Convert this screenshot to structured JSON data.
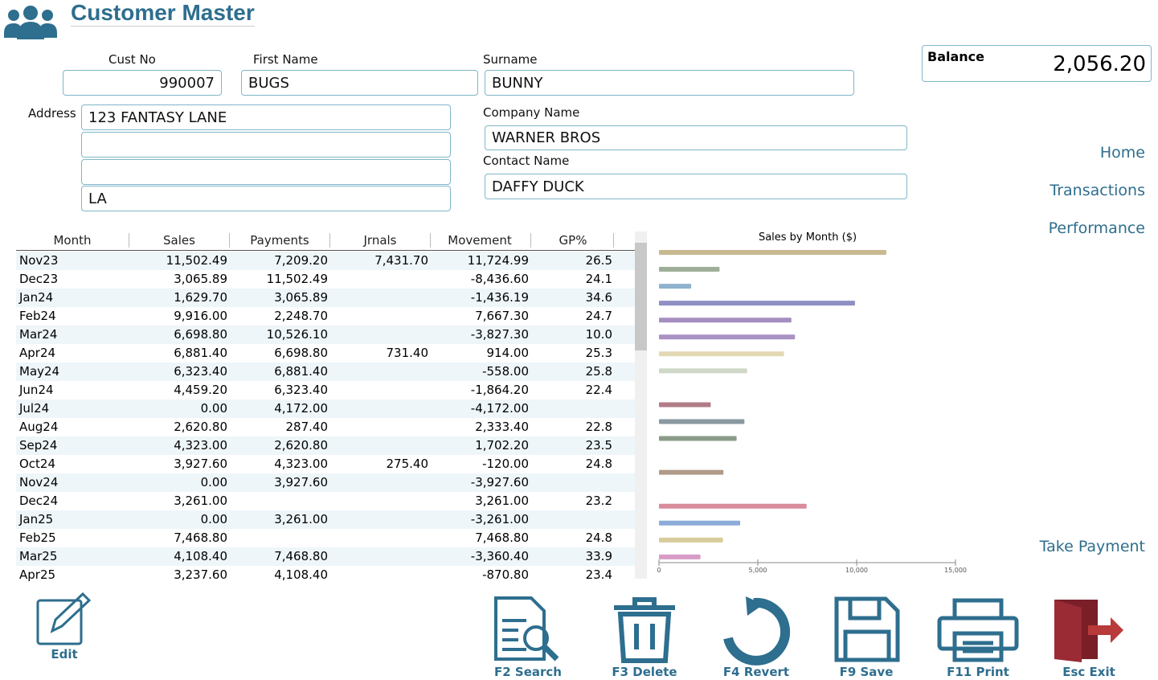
{
  "header": {
    "title": "Customer Master"
  },
  "form": {
    "cust_no": {
      "label": "Cust No",
      "value": "990007"
    },
    "first_name": {
      "label": "First Name",
      "value": "BUGS"
    },
    "surname": {
      "label": "Surname",
      "value": "BUNNY"
    },
    "address": {
      "label": "Address",
      "lines": [
        "123 FANTASY LANE",
        null,
        null,
        "LA"
      ]
    },
    "company_name": {
      "label": "Company Name",
      "value": "WARNER BROS"
    },
    "contact_name": {
      "label": "Contact Name",
      "value": "DAFFY DUCK"
    },
    "balance": {
      "label": "Balance",
      "value": "2,056.20"
    }
  },
  "nav": [
    "Home",
    "Transactions",
    "Performance"
  ],
  "take_payment": "Take Payment",
  "table": {
    "columns": [
      "Month",
      "Sales",
      "Payments",
      "Jrnals",
      "Movement",
      "GP%"
    ],
    "rows": [
      [
        "Nov23",
        "11,502.49",
        "7,209.20",
        "7,431.70",
        "11,724.99",
        "26.5"
      ],
      [
        "Dec23",
        "3,065.89",
        "11,502.49",
        null,
        "-8,436.60",
        "24.1"
      ],
      [
        "Jan24",
        "1,629.70",
        "3,065.89",
        null,
        "-1,436.19",
        "34.6"
      ],
      [
        "Feb24",
        "9,916.00",
        "2,248.70",
        null,
        "7,667.30",
        "24.7"
      ],
      [
        "Mar24",
        "6,698.80",
        "10,526.10",
        null,
        "-3,827.30",
        "10.0"
      ],
      [
        "Apr24",
        "6,881.40",
        "6,698.80",
        "731.40",
        "914.00",
        "25.3"
      ],
      [
        "May24",
        "6,323.40",
        "6,881.40",
        null,
        "-558.00",
        "25.8"
      ],
      [
        "Jun24",
        "4,459.20",
        "6,323.40",
        null,
        "-1,864.20",
        "22.4"
      ],
      [
        "Jul24",
        "0.00",
        "4,172.00",
        null,
        "-4,172.00",
        null
      ],
      [
        "Aug24",
        "2,620.80",
        "287.40",
        null,
        "2,333.40",
        "22.8"
      ],
      [
        "Sep24",
        "4,323.00",
        "2,620.80",
        null,
        "1,702.20",
        "23.5"
      ],
      [
        "Oct24",
        "3,927.60",
        "4,323.00",
        "275.40",
        "-120.00",
        "24.8"
      ],
      [
        "Nov24",
        "0.00",
        "3,927.60",
        null,
        "-3,927.60",
        null
      ],
      [
        "Dec24",
        "3,261.00",
        null,
        null,
        "3,261.00",
        "23.2"
      ],
      [
        "Jan25",
        "0.00",
        "3,261.00",
        null,
        "-3,261.00",
        null
      ],
      [
        "Feb25",
        "7,468.80",
        null,
        null,
        "7,468.80",
        "24.8"
      ],
      [
        "Mar25",
        "4,108.40",
        "7,468.80",
        null,
        "-3,360.40",
        "33.9"
      ],
      [
        "Apr25",
        "3,237.60",
        "4,108.40",
        null,
        "-870.80",
        "23.4"
      ]
    ]
  },
  "chart_data": {
    "type": "hbar",
    "title": "Sales by Month ($)",
    "categories": [
      null,
      null,
      null,
      null,
      null,
      null,
      null,
      null,
      null,
      null,
      null,
      null,
      null,
      null,
      null,
      null,
      null,
      null,
      null
    ],
    "values": [
      11502.49,
      3065.89,
      1629.7,
      9916.0,
      6698.8,
      6881.4,
      6323.4,
      4459.2,
      0,
      2620.8,
      4323.0,
      3927.6,
      0,
      3261.0,
      0,
      7468.8,
      4108.4,
      3237.6,
      2100
    ],
    "colors": [
      "#c9b98f",
      "#9fae98",
      "#8fb3cf",
      "#8f8fc4",
      "#a58fc0",
      "#a991c2",
      "#e3d8b5",
      "#cfd8c8",
      "#cccccc",
      "#b07c88",
      "#8a98a0",
      "#8a9c88",
      "#cccccc",
      "#b09a88",
      "#cccccc",
      "#d88c9c",
      "#8cacd8",
      "#d8cc9c",
      "#d89cc8"
    ],
    "xlim": [
      0,
      15000
    ],
    "xticks": [
      0,
      {
        "value": 5000,
        "label": "5,000"
      },
      {
        "value": 10000,
        "label": "10,000"
      },
      {
        "value": 15000,
        "label": "15,000"
      }
    ]
  },
  "buttons": [
    "Edit",
    "F2 Search",
    "F3 Delete",
    "F4 Revert",
    "F9 Save",
    "F11 Print",
    "Esc Exit"
  ]
}
